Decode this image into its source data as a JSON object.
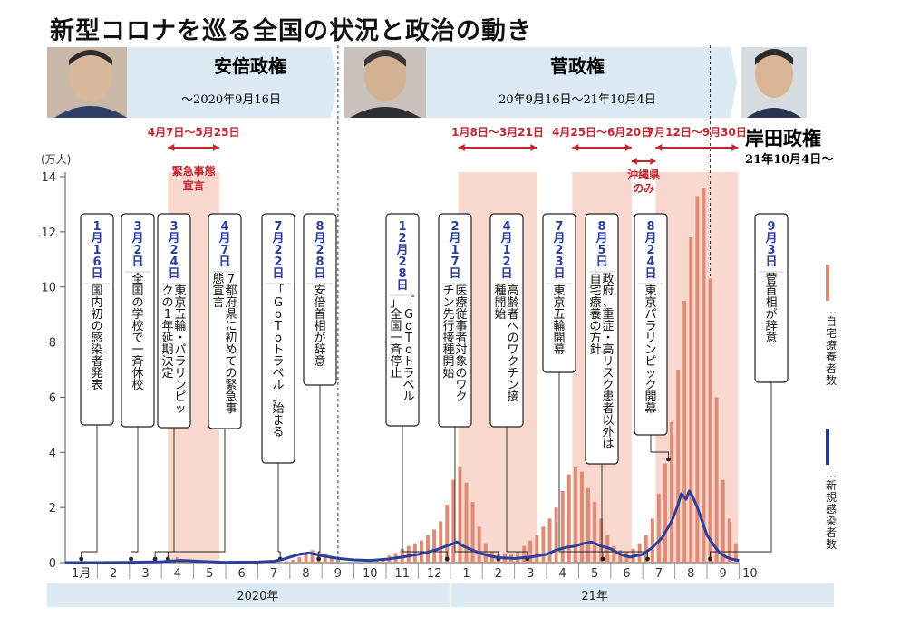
{
  "title": "新型コロナを巡る全国の状況と政治の動き",
  "eras": [
    {
      "name": "安倍政権",
      "range": "～2020年9月16日"
    },
    {
      "name": "菅政権",
      "range": "20年9月16日～21年10月4日"
    },
    {
      "name": "岸田政権",
      "range": "21年10月4日～"
    }
  ],
  "emergency": [
    {
      "range": "4月7日～5月25日",
      "start": 3.2,
      "end": 4.8,
      "label": "緊急事態|宣言"
    },
    {
      "range": "1月8日～3月21日",
      "start": 12.25,
      "end": 14.7
    },
    {
      "range": "4月25日～6月20日",
      "start": 15.8,
      "end": 17.65
    },
    {
      "range": "7月12日～9月30日",
      "start": 18.4,
      "end": 20.97
    }
  ],
  "okinawa_label": "沖縄県|のみ",
  "events": [
    {
      "date": "1月16日",
      "text": "国内初の感染者発表"
    },
    {
      "date": "3月2日",
      "text": "全国の学校で一斉休校"
    },
    {
      "date": "3月24日",
      "text": "東京五輪・パラリンピックの1年延期決定"
    },
    {
      "date": "4月7日",
      "text": "7都府県に初めての緊急事態宣言"
    },
    {
      "date": "7月22日",
      "text": "「GoToトラベル」始まる"
    },
    {
      "date": "8月28日",
      "text": "安倍首相が辞意"
    },
    {
      "date": "12月28日",
      "text": "「GoToトラベル」全国一斉停止"
    },
    {
      "date": "2月17日",
      "text": "医療従事者対象のワクチン先行接種開始"
    },
    {
      "date": "4月12日",
      "text": "高齢者へのワクチン接種開始"
    },
    {
      "date": "7月23日",
      "text": "東京五輪開幕"
    },
    {
      "date": "8月5日",
      "text": "政府、重症・高リスク患者以外は自宅療養の方針"
    },
    {
      "date": "8月24日",
      "text": "東京パラリンピック開幕"
    },
    {
      "date": "9月3日",
      "text": "菅首相が辞意"
    }
  ],
  "legend": {
    "bars": "…自宅療養者数",
    "line": "…新規感染者数"
  },
  "colors": {
    "bar": "#e08b75",
    "line": "#283f9c",
    "emergency": "#f9d9cf",
    "accent": "#c4262e",
    "date": "#2a3f9e",
    "band": "#dbeaf3"
  },
  "chart_data": {
    "type": "bar+line",
    "title": "新型コロナを巡る全国の状況と政治の動き",
    "ylabel": "(万人)",
    "ylim": [
      0,
      14
    ],
    "yticks": [
      0,
      2,
      4,
      6,
      8,
      10,
      12,
      14
    ],
    "xticks": [
      "1月",
      "2",
      "3",
      "4",
      "5",
      "6",
      "7",
      "8",
      "9",
      "10",
      "11",
      "12",
      "1",
      "2",
      "3",
      "4",
      "5",
      "6",
      "7",
      "8",
      "9",
      "10"
    ],
    "years": [
      "2020年",
      "21年"
    ],
    "bar_series": {
      "name": "自宅療養者数",
      "x": [
        2.2,
        3.5,
        3.8,
        6.9,
        7.1,
        7.3,
        7.5,
        7.7,
        7.9,
        8.1,
        8.3,
        8.5,
        9.7,
        9.9,
        10.1,
        10.3,
        10.5,
        10.7,
        10.9,
        11.1,
        11.3,
        11.5,
        11.7,
        11.9,
        12.1,
        12.3,
        12.5,
        12.7,
        12.9,
        13.1,
        13.3,
        13.5,
        13.7,
        13.9,
        14.1,
        14.3,
        14.5,
        14.7,
        14.9,
        15.1,
        15.3,
        15.5,
        15.7,
        15.9,
        16.1,
        16.3,
        16.5,
        16.7,
        16.9,
        17.1,
        17.3,
        17.5,
        17.7,
        17.9,
        18.1,
        18.3,
        18.5,
        18.7,
        18.9,
        19.1,
        19.3,
        19.5,
        19.7,
        19.9,
        20.1,
        20.3,
        20.5,
        20.7,
        20.9
      ],
      "values": [
        0.05,
        0.2,
        0.05,
        0.05,
        0.1,
        0.2,
        0.3,
        0.45,
        0.4,
        0.3,
        0.2,
        0.1,
        0.08,
        0.15,
        0.25,
        0.35,
        0.5,
        0.6,
        0.7,
        0.8,
        1.0,
        1.2,
        1.5,
        2.1,
        3.0,
        3.5,
        2.9,
        2.2,
        1.3,
        0.7,
        0.4,
        0.3,
        0.3,
        0.3,
        0.4,
        0.6,
        0.8,
        1.0,
        1.3,
        1.6,
        2.0,
        2.6,
        3.2,
        3.45,
        3.3,
        2.7,
        2.2,
        1.6,
        1.0,
        0.6,
        0.45,
        0.4,
        0.5,
        0.7,
        1.0,
        1.6,
        2.5,
        3.6,
        5.1,
        7.0,
        9.5,
        11.8,
        13.3,
        13.6,
        10.3,
        6.0,
        3.0,
        1.6,
        0.7
      ]
    },
    "line_series": {
      "name": "新規感染者数",
      "x": [
        0,
        1,
        2,
        2.5,
        3,
        3.3,
        3.6,
        4,
        4.5,
        5,
        6,
        6.5,
        6.8,
        7,
        7.3,
        7.6,
        8,
        8.5,
        9,
        9.5,
        10,
        10.5,
        11,
        11.3,
        11.6,
        12,
        12.2,
        12.4,
        12.6,
        12.9,
        13.2,
        13.5,
        14,
        14.5,
        15,
        15.3,
        15.6,
        15.9,
        16.1,
        16.4,
        16.7,
        17,
        17.3,
        17.6,
        18,
        18.3,
        18.6,
        18.9,
        19.1,
        19.2,
        19.35,
        19.45,
        19.55,
        19.7,
        19.85,
        20,
        20.2,
        20.4,
        20.6,
        20.8,
        21
      ],
      "values": [
        0,
        0,
        0.01,
        0.02,
        0.03,
        0.06,
        0.08,
        0.06,
        0.03,
        0.01,
        0.02,
        0.05,
        0.12,
        0.2,
        0.3,
        0.35,
        0.25,
        0.15,
        0.1,
        0.08,
        0.12,
        0.2,
        0.3,
        0.38,
        0.48,
        0.65,
        0.75,
        0.6,
        0.5,
        0.35,
        0.25,
        0.18,
        0.15,
        0.2,
        0.3,
        0.45,
        0.55,
        0.6,
        0.68,
        0.75,
        0.6,
        0.5,
        0.3,
        0.2,
        0.3,
        0.55,
        0.9,
        1.5,
        2.1,
        2.5,
        2.3,
        2.6,
        2.4,
        2.0,
        1.5,
        1.0,
        0.65,
        0.35,
        0.2,
        0.12,
        0.08
      ]
    }
  }
}
